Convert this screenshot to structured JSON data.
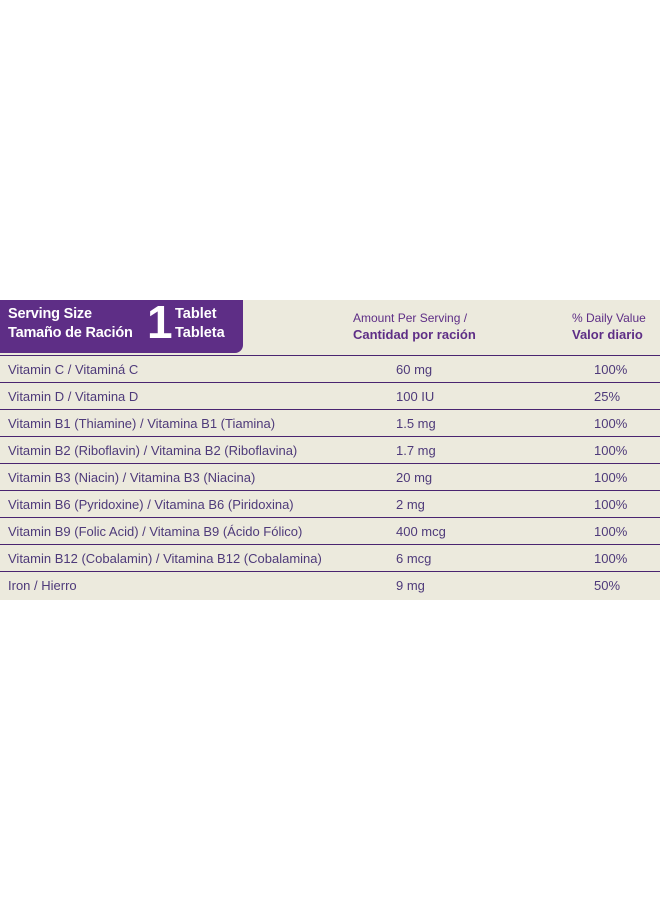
{
  "header": {
    "serving_size_en": "Serving Size",
    "serving_size_es": "Tamaño de Ración",
    "serving_count": "1",
    "unit_en": "Tablet",
    "unit_es": "Tableta",
    "amount_en": "Amount Per Serving /",
    "amount_es": "Cantidad por ración",
    "dv_en": "% Daily Value",
    "dv_es": "Valor diario"
  },
  "rows": [
    {
      "name": "Vitamin C / Vitaminá C",
      "amount": "60 mg",
      "dv": "100%"
    },
    {
      "name": "Vitamin D / Vitamina D",
      "amount": "100 IU",
      "dv": "25%"
    },
    {
      "name": "Vitamin B1 (Thiamine) / Vitamina B1 (Tiamina)",
      "amount": "1.5 mg",
      "dv": "100%"
    },
    {
      "name": "Vitamin B2 (Riboflavin) / Vitamina B2 (Riboflavina)",
      "amount": "1.7 mg",
      "dv": "100%"
    },
    {
      "name": "Vitamin B3 (Niacin) / Vitamina B3 (Niacina)",
      "amount": "20 mg",
      "dv": "100%"
    },
    {
      "name": "Vitamin B6 (Pyridoxine) / Vitamina B6 (Piridoxina)",
      "amount": "2 mg",
      "dv": "100%"
    },
    {
      "name": "Vitamin B9 (Folic Acid) / Vitamina B9 (Ácido Fólico)",
      "amount": "400 mcg",
      "dv": "100%"
    },
    {
      "name": "Vitamin B12 (Cobalamin) / Vitamina B12 (Cobalamina)",
      "amount": "6 mcg",
      "dv": "100%"
    },
    {
      "name": "Iron / Hierro",
      "amount": "9 mg",
      "dv": "50%"
    }
  ]
}
